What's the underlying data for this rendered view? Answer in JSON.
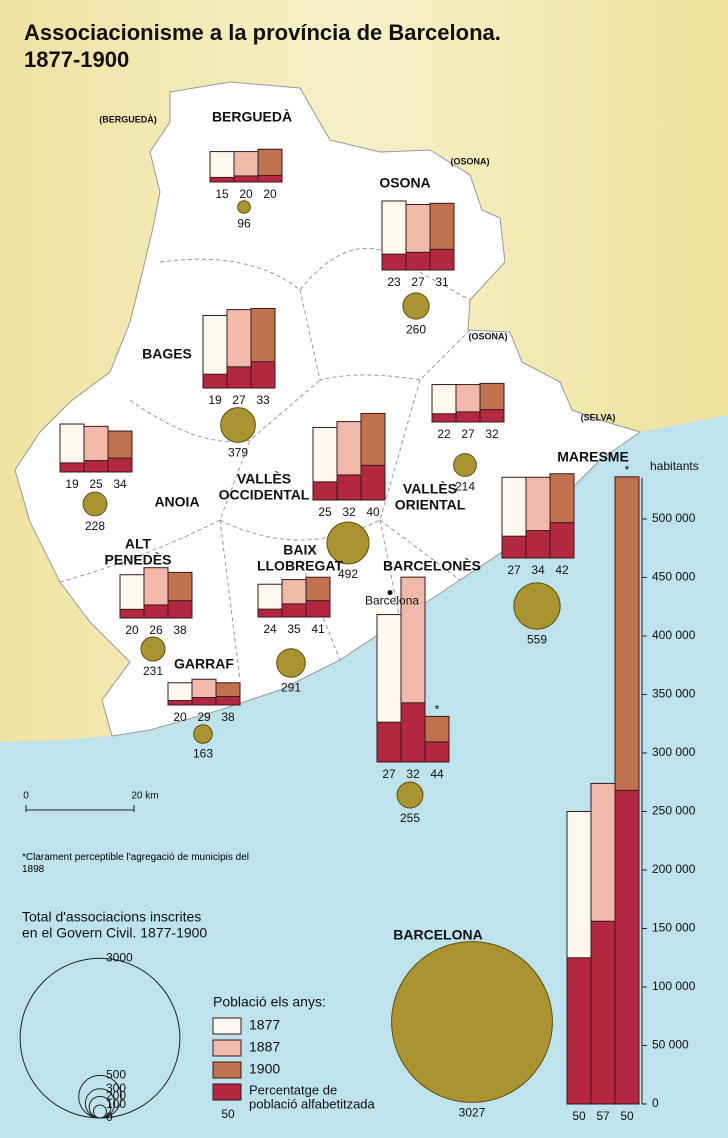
{
  "title": "Associacionisme a la província de Barcelona.",
  "title_years": "1877-1900",
  "neighbor_labels": [
    "(BERGUEDÀ)",
    "(OSONA)",
    "(OSONA)",
    "(SELVA)"
  ],
  "scale_bar": {
    "start": "0",
    "end": "20 km"
  },
  "note": "*Clarament perceptible l'agregació de municipis del 1898",
  "associations_legend": {
    "title_lines": [
      "Total d'associacions inscrites",
      "en el Govern Civil. 1877-1900"
    ],
    "sizes": [
      3000,
      500,
      300,
      200,
      100,
      0
    ]
  },
  "population_legend": {
    "title": "Població els anys:",
    "years": [
      "1877",
      "1887",
      "1900"
    ],
    "literacy_lines": [
      "Percentatge de",
      "població alfabetitzada"
    ],
    "literacy_example": "50",
    "colors": [
      "#fdf8ef",
      "#f1b9aa",
      "#c0714d"
    ],
    "literacy_color": "#b3273f"
  },
  "axis": {
    "label": "habitants",
    "ylim": [
      0,
      535000
    ],
    "yticks": [
      0,
      {
        "value": 50000,
        "label": "50 000"
      },
      {
        "value": 100000,
        "label": "100 000"
      },
      {
        "value": 150000,
        "label": "150 000"
      },
      {
        "value": 200000,
        "label": "200 000"
      },
      {
        "value": 250000,
        "label": "250 000"
      },
      {
        "value": 300000,
        "label": "300 000"
      },
      {
        "value": 350000,
        "label": "350 000"
      },
      {
        "value": 400000,
        "label": "400 000"
      },
      {
        "value": 450000,
        "label": "450 000"
      },
      {
        "value": 500000,
        "label": "500 000"
      }
    ]
  },
  "circle_color": "#a99431",
  "regions": [
    {
      "name_lines": [
        "BERGUEDÀ"
      ],
      "population": [
        26000,
        26000,
        28000
      ],
      "literacy": [
        15,
        20,
        20
      ],
      "associations": 96
    },
    {
      "name_lines": [
        "OSONA"
      ],
      "population": [
        59000,
        56000,
        57000
      ],
      "literacy": [
        23,
        27,
        31
      ],
      "associations": 260
    },
    {
      "name_lines": [
        "BAGES"
      ],
      "population": [
        62000,
        67000,
        68000
      ],
      "literacy": [
        19,
        27,
        33
      ],
      "associations": 379
    },
    {
      "name_lines": [
        "ANOIA"
      ],
      "population": [
        41000,
        39000,
        35000
      ],
      "literacy": [
        19,
        25,
        34
      ],
      "associations": 228
    },
    {
      "name_lines": [
        "VALLÈS",
        "ORIENTAL"
      ],
      "population": [
        32000,
        32000,
        33000
      ],
      "literacy": [
        22,
        27,
        32
      ],
      "associations": 214
    },
    {
      "name_lines": [
        "VALLÈS",
        "OCCIDENTAL"
      ],
      "population": [
        62000,
        67000,
        74000
      ],
      "literacy": [
        25,
        32,
        40
      ],
      "associations": 492
    },
    {
      "name_lines": [
        "MARESME"
      ],
      "population": [
        69000,
        69000,
        72000
      ],
      "literacy": [
        27,
        34,
        42
      ],
      "associations": 559
    },
    {
      "name_lines": [
        "ALT",
        "PENEDÈS"
      ],
      "population": [
        37000,
        43000,
        39000
      ],
      "literacy": [
        20,
        26,
        38
      ],
      "associations": 231
    },
    {
      "name_lines": [
        "BAIX",
        "LLOBREGAT"
      ],
      "population": [
        28000,
        32000,
        34000
      ],
      "literacy": [
        24,
        35,
        41
      ],
      "associations": 291
    },
    {
      "name_lines": [
        "GARRAF"
      ],
      "population": [
        19000,
        22000,
        19000
      ],
      "literacy": [
        20,
        29,
        38
      ],
      "associations": 163
    },
    {
      "name_lines": [
        "BARCELONÈS"
      ],
      "population": [
        126000,
        158000,
        39000
      ],
      "literacy": [
        27,
        32,
        44
      ],
      "associations": 255,
      "city_label": "Barcelona",
      "flag": "*"
    },
    {
      "name_lines": [
        "BARCELONA"
      ],
      "population": [
        250000,
        274000,
        536000
      ],
      "literacy": [
        50,
        57,
        50
      ],
      "associations": 3027,
      "flag": "*"
    }
  ]
}
